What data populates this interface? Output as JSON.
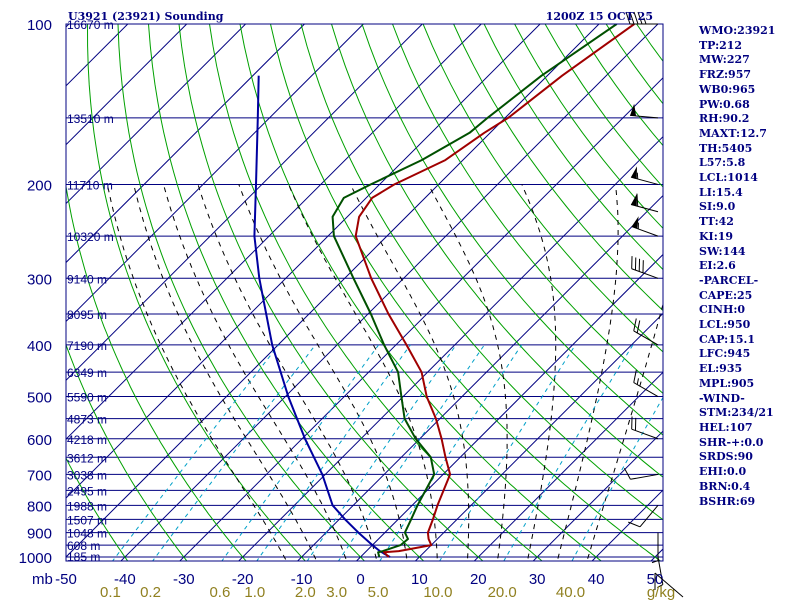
{
  "header": {
    "station": "U3921 (23921) Sounding",
    "valid": "1200Z 15 OCT 25"
  },
  "stats": [
    "WMO:23921",
    "TP:212",
    "MW:227",
    "FRZ:957",
    "WB0:965",
    "PW:0.68",
    "RH:90.2",
    "MAXT:12.7",
    "TH:5405",
    "L57:5.8",
    "LCL:1014",
    "LI:15.4",
    "SI:9.0",
    "TT:42",
    "KI:19",
    "SW:144",
    "EI:2.6",
    "-PARCEL-",
    "CAPE:25",
    "CINH:0",
    "LCL:950",
    "CAP:15.1",
    "LFC:945",
    "EL:935",
    "MPL:905",
    "-WIND-",
    "STM:234/21",
    "HEL:107",
    "SHR-+:0.0",
    "SRDS:90",
    "EHI:0.0",
    "BRN:0.4",
    "BSHR:69"
  ],
  "chart_data": {
    "type": "line",
    "title": "U3921 (23921) Sounding",
    "subtitle": "1200Z 15 OCT 25",
    "ylabel": "mb",
    "xlabel_units": "g/kg",
    "pressure_ticks": [
      {
        "p": 100,
        "label": "100"
      },
      {
        "p": 200,
        "label": "200"
      },
      {
        "p": 300,
        "label": "300"
      },
      {
        "p": 400,
        "label": "400"
      },
      {
        "p": 500,
        "label": "500"
      },
      {
        "p": 600,
        "label": "600"
      },
      {
        "p": 700,
        "label": "700"
      },
      {
        "p": 800,
        "label": "800"
      },
      {
        "p": 900,
        "label": "900"
      },
      {
        "p": 1000,
        "label": "1000"
      }
    ],
    "temperature_ticks": [
      "-50",
      "-40",
      "-30",
      "-20",
      "-10",
      "0",
      "10",
      "20",
      "30",
      "40",
      "50"
    ],
    "mixing_ratio_ticks": [
      "0.1",
      "0.2",
      "0.6",
      "1.0",
      "2.0",
      "3.0",
      "5.0",
      "10.0",
      "20.0",
      "40.0"
    ],
    "height_labels": [
      {
        "p": 100,
        "label": "16670 m"
      },
      {
        "p": 150,
        "label": "13510 m"
      },
      {
        "p": 200,
        "label": "11710 m"
      },
      {
        "p": 250,
        "label": "10320 m"
      },
      {
        "p": 300,
        "label": "9140 m"
      },
      {
        "p": 350,
        "label": "8095 m"
      },
      {
        "p": 400,
        "label": "7190 m"
      },
      {
        "p": 450,
        "label": "6349 m"
      },
      {
        "p": 500,
        "label": "5590 m"
      },
      {
        "p": 550,
        "label": "4873 m"
      },
      {
        "p": 600,
        "label": "4218 m"
      },
      {
        "p": 650,
        "label": "3612 m"
      },
      {
        "p": 700,
        "label": "3038 m"
      },
      {
        "p": 750,
        "label": "2495 m"
      },
      {
        "p": 800,
        "label": "1988 m"
      },
      {
        "p": 850,
        "label": "1507 m"
      },
      {
        "p": 900,
        "label": "1048 m"
      },
      {
        "p": 950,
        "label": "608 m"
      },
      {
        "p": 1000,
        "label": "185 m"
      }
    ],
    "series": [],
    "temperature_profile": [
      [
        1000,
        4.8
      ],
      [
        980,
        3.2
      ],
      [
        975,
        5.5
      ],
      [
        950,
        10.0
      ],
      [
        925,
        8.5
      ],
      [
        900,
        7.3
      ],
      [
        850,
        5.9
      ],
      [
        800,
        4.3
      ],
      [
        700,
        1.2
      ],
      [
        650,
        -2.5
      ],
      [
        600,
        -6.3
      ],
      [
        550,
        -10.7
      ],
      [
        500,
        -16.0
      ],
      [
        450,
        -21.0
      ],
      [
        400,
        -28.2
      ],
      [
        350,
        -36.5
      ],
      [
        300,
        -45.5
      ],
      [
        250,
        -55.3
      ],
      [
        230,
        -58.0
      ],
      [
        212,
        -59.0
      ],
      [
        200,
        -57.5
      ],
      [
        180,
        -53.0
      ],
      [
        160,
        -51.0
      ],
      [
        150,
        -49.5
      ],
      [
        125,
        -47.5
      ],
      [
        100,
        -44.0
      ]
    ],
    "dewpoint_profile": [
      [
        1000,
        3.2
      ],
      [
        980,
        2.2
      ],
      [
        975,
        2.8
      ],
      [
        950,
        4.8
      ],
      [
        925,
        5.0
      ],
      [
        900,
        3.4
      ],
      [
        850,
        2.2
      ],
      [
        800,
        0.9
      ],
      [
        700,
        -1.5
      ],
      [
        650,
        -5.0
      ],
      [
        600,
        -10.7
      ],
      [
        550,
        -16.0
      ],
      [
        500,
        -20.3
      ],
      [
        450,
        -25.0
      ],
      [
        400,
        -32.0
      ],
      [
        350,
        -39.5
      ],
      [
        300,
        -48.5
      ],
      [
        250,
        -59.0
      ],
      [
        230,
        -62.5
      ],
      [
        212,
        -63.8
      ],
      [
        200,
        -61.5
      ],
      [
        180,
        -57.0
      ],
      [
        160,
        -53.5
      ],
      [
        150,
        -53.0
      ],
      [
        125,
        -51.0
      ],
      [
        100,
        -47.0
      ]
    ],
    "parcel_profile": [
      [
        1000,
        5.0
      ],
      [
        975,
        2.3
      ],
      [
        950,
        0.0
      ],
      [
        900,
        -4.5
      ],
      [
        850,
        -9.0
      ],
      [
        800,
        -13.5
      ],
      [
        700,
        -20.5
      ],
      [
        600,
        -29.5
      ],
      [
        500,
        -39.5
      ],
      [
        400,
        -51.0
      ],
      [
        300,
        -64.5
      ],
      [
        250,
        -72.5
      ],
      [
        200,
        -81.0
      ],
      [
        150,
        -92.0
      ],
      [
        125,
        -99.0
      ]
    ],
    "wind_barbs": [
      {
        "p": 100,
        "dir": 270,
        "kt": 45
      },
      {
        "p": 150,
        "dir": 275,
        "kt": 50
      },
      {
        "p": 200,
        "dir": 285,
        "kt": 55
      },
      {
        "p": 225,
        "dir": 285,
        "kt": 60
      },
      {
        "p": 250,
        "dir": 290,
        "kt": 55
      },
      {
        "p": 300,
        "dir": 290,
        "kt": 40
      },
      {
        "p": 400,
        "dir": 300,
        "kt": 20
      },
      {
        "p": 500,
        "dir": 300,
        "kt": 15
      },
      {
        "p": 600,
        "dir": 290,
        "kt": 20
      },
      {
        "p": 700,
        "dir": 260,
        "kt": 10
      },
      {
        "p": 800,
        "dir": 220,
        "kt": 10
      },
      {
        "p": 900,
        "dir": 180,
        "kt": 5
      },
      {
        "p": 1000,
        "dir": 170,
        "kt": 5
      }
    ],
    "plim": [
      1000,
      100
    ],
    "tlim": [
      -50,
      50
    ],
    "legend": "none",
    "grid": true,
    "colors": {
      "temperature": "#a00000",
      "dewpoint": "#005000",
      "parcel": "#0000a0",
      "isobar": "#000080",
      "isotherm": "#000080",
      "dry_adiabat": "#00a000",
      "moist_adiabat": "#000000",
      "mixing_ratio": "#00a0c8",
      "mixing_ratio_label": "#908020",
      "text": "#000080",
      "frame": "#000080"
    }
  }
}
